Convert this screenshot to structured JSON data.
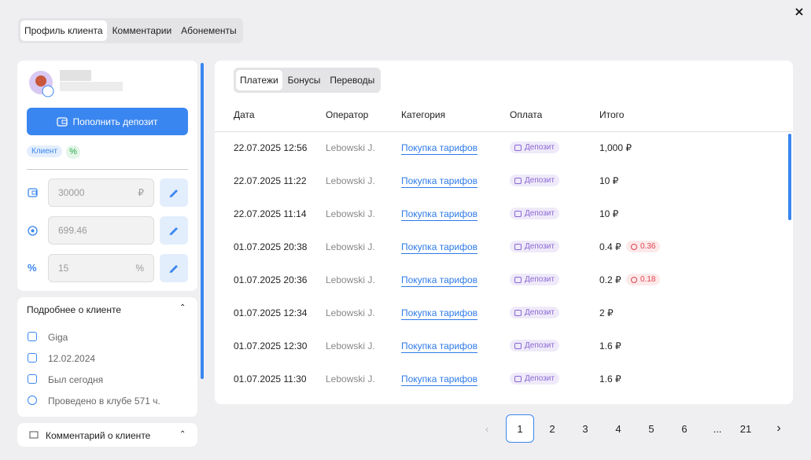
{
  "tabs": [
    "Профиль клиента",
    "Комментарии",
    "Абонементы"
  ],
  "profile": {
    "deposit_button": "Пополнить депозит",
    "tag": "Клиент",
    "fields": [
      {
        "value": "30000",
        "unit": "₽"
      },
      {
        "value": "699.46"
      },
      {
        "value": "15",
        "unit": "%"
      }
    ]
  },
  "details": {
    "title": "Подробнее о клиенте",
    "items": [
      "Giga",
      "12.02.2024",
      "Был сегодня",
      "Проведено в клубе 571 ч."
    ]
  },
  "comment": {
    "title": "Комментарий о клиенте"
  },
  "subtabs": [
    "Платежи",
    "Бонусы",
    "Переводы"
  ],
  "table": {
    "columns": [
      "Дата",
      "Оператор",
      "Категория",
      "Оплата",
      "Итого"
    ],
    "rows": [
      {
        "date": "22.07.2025 12:56",
        "operator": "Lebowski J.",
        "category": "Покупка тарифов",
        "payment": "Депозит",
        "total": "1,000 ₽"
      },
      {
        "date": "22.07.2025 11:22",
        "operator": "Lebowski J.",
        "category": "Покупка тарифов",
        "payment": "Депозит",
        "total": "10 ₽"
      },
      {
        "date": "22.07.2025 11:14",
        "operator": "Lebowski J.",
        "category": "Покупка тарифов",
        "payment": "Депозит",
        "total": "10 ₽"
      },
      {
        "date": "01.07.2025 20:38",
        "operator": "Lebowski J.",
        "category": "Покупка тарифов",
        "payment": "Депозит",
        "total": "0.4 ₽",
        "bonus": "0.36"
      },
      {
        "date": "01.07.2025 20:36",
        "operator": "Lebowski J.",
        "category": "Покупка тарифов",
        "payment": "Депозит",
        "total": "0.2 ₽",
        "bonus": "0.18"
      },
      {
        "date": "01.07.2025 12:34",
        "operator": "Lebowski J.",
        "category": "Покупка тарифов",
        "payment": "Депозит",
        "total": "2 ₽"
      },
      {
        "date": "01.07.2025 12:30",
        "operator": "Lebowski J.",
        "category": "Покупка тарифов",
        "payment": "Депозит",
        "total": "1.6 ₽"
      },
      {
        "date": "01.07.2025 11:30",
        "operator": "Lebowski J.",
        "category": "Покупка тарифов",
        "payment": "Депозит",
        "total": "1.6 ₽"
      }
    ]
  },
  "pagination": {
    "pages": [
      "1",
      "2",
      "3",
      "4",
      "5",
      "6",
      "...",
      "21"
    ],
    "current": 0
  }
}
